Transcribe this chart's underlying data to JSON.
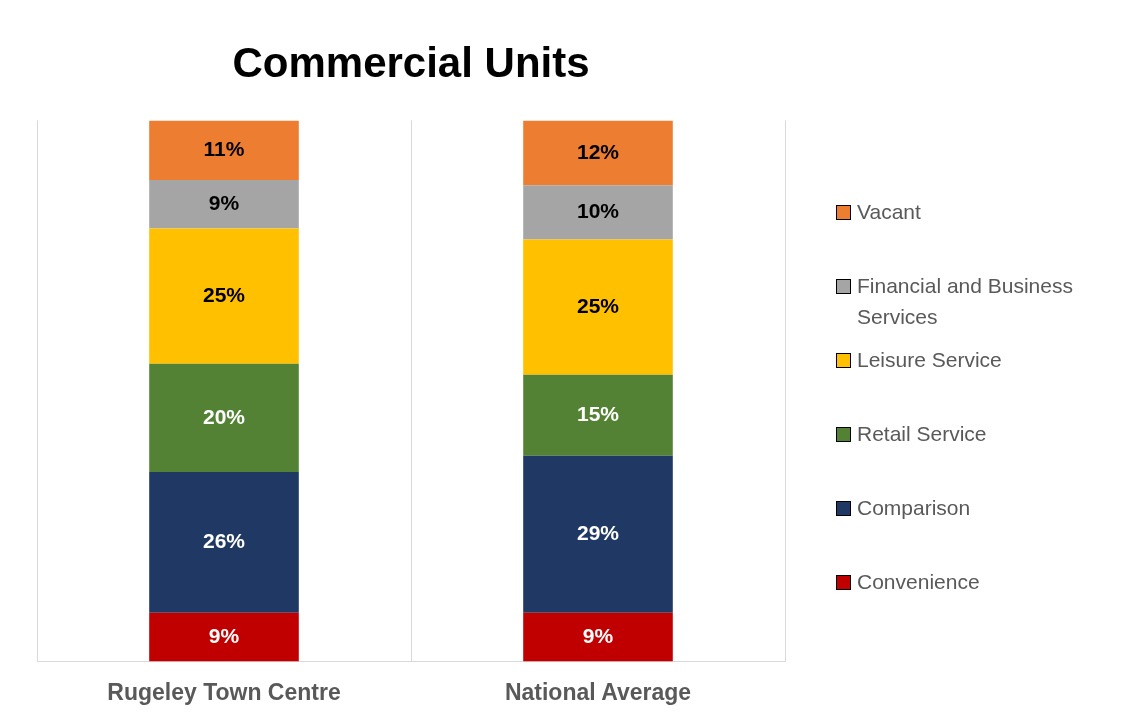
{
  "chart_data": {
    "type": "bar",
    "title": "Commercial Units",
    "stacked": true,
    "grid": "x",
    "legend": "right",
    "tick_labels": "x",
    "categories": [
      "Rugeley Town Centre",
      "National Average"
    ],
    "series": [
      {
        "name": "Convenience",
        "color": "#c00000",
        "values": [
          9,
          9
        ],
        "value_labels": [
          "9%",
          "9%"
        ]
      },
      {
        "name": "Comparison",
        "color": "#203864",
        "values": [
          26,
          29
        ],
        "value_labels": [
          "26%",
          "29%"
        ]
      },
      {
        "name": "Retail Service",
        "color": "#548235",
        "values": [
          20,
          15
        ],
        "value_labels": [
          "20%",
          "15%"
        ]
      },
      {
        "name": "Leisure Service",
        "color": "#ffc000",
        "values": [
          25,
          25
        ],
        "value_labels": [
          "25%",
          "25%"
        ]
      },
      {
        "name": "Financial and Business Services",
        "color": "#a5a5a5",
        "values": [
          9,
          10
        ],
        "value_labels": [
          "9%",
          "10%"
        ]
      },
      {
        "name": "Vacant",
        "color": "#ed7d31",
        "values": [
          11,
          12
        ],
        "value_labels": [
          "11%",
          "12%"
        ]
      }
    ]
  }
}
